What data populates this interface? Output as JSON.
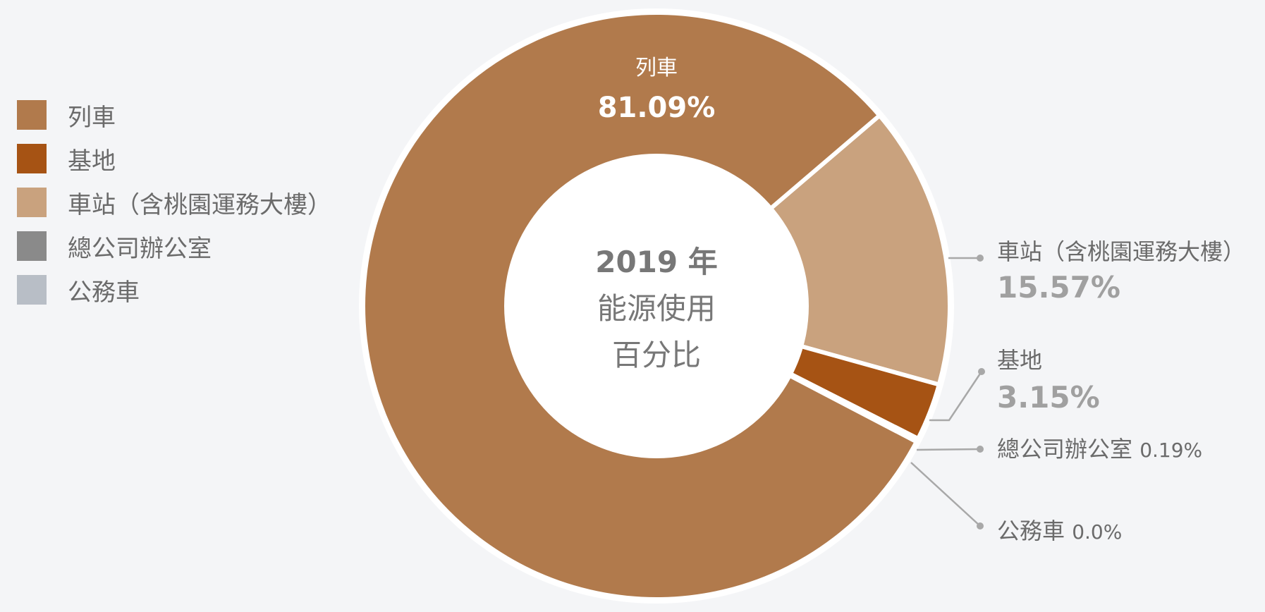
{
  "chart_data": {
    "type": "pie",
    "variant": "donut",
    "center_label": [
      "2019 年",
      "能源使用",
      "百分比"
    ],
    "categories": [
      "列車",
      "基地",
      "車站（含桃園運務大樓）",
      "總公司辦公室",
      "公務車"
    ],
    "values": [
      81.09,
      3.15,
      15.57,
      0.19,
      0.0
    ],
    "value_labels": [
      "81.09%",
      "3.15%",
      "15.57%",
      "0.19%",
      "0.0%"
    ],
    "colors": [
      "#b17a4c",
      "#a65314",
      "#c9a27e",
      "#8a8a8a",
      "#b8bec6"
    ],
    "legend_position": "left",
    "slice_label_color_inside": "#ffffff",
    "slice_label_color_outside": "#6b6b6b",
    "value_color_outside": "#a0a0a0"
  }
}
